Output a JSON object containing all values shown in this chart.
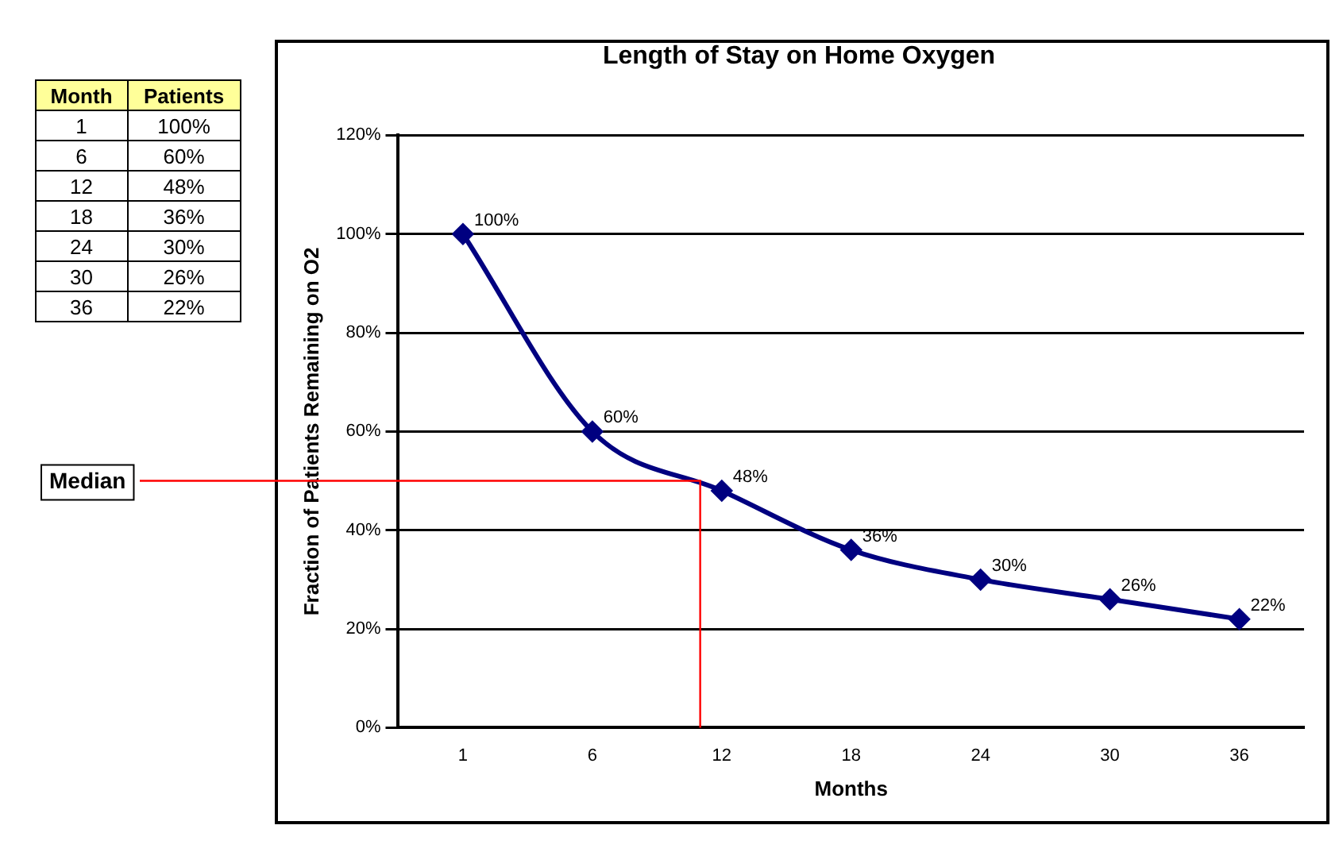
{
  "chart_data": {
    "type": "line",
    "title": "Length of Stay on Home Oxygen",
    "xlabel": "Months",
    "ylabel": "Fraction of Patients Remaining on O2",
    "categories": [
      "1",
      "6",
      "12",
      "18",
      "24",
      "30",
      "36"
    ],
    "series": [
      {
        "color": "#000080",
        "values": [
          100,
          60,
          48,
          36,
          30,
          26,
          22
        ],
        "value_labels": [
          "100%",
          "60%",
          "48%",
          "36%",
          "30%",
          "26%",
          "22%"
        ]
      }
    ],
    "ylim": [
      0,
      120
    ],
    "yticks": [
      {
        "value": 0,
        "label": "0%"
      },
      {
        "value": 20,
        "label": "20%"
      },
      {
        "value": 40,
        "label": "40%"
      },
      {
        "value": 60,
        "label": "60%"
      },
      {
        "value": 80,
        "label": "80%"
      },
      {
        "value": 100,
        "label": "100%"
      },
      {
        "value": 120,
        "label": "120%"
      }
    ],
    "grid": "y",
    "legend": false,
    "marker": "diamond",
    "line_style": "solid",
    "ref_lines": [
      {
        "axis": "y",
        "value": 50,
        "label": "Median",
        "color": "#ff0000"
      }
    ],
    "annotations": [
      "Month",
      "Patients"
    ]
  }
}
